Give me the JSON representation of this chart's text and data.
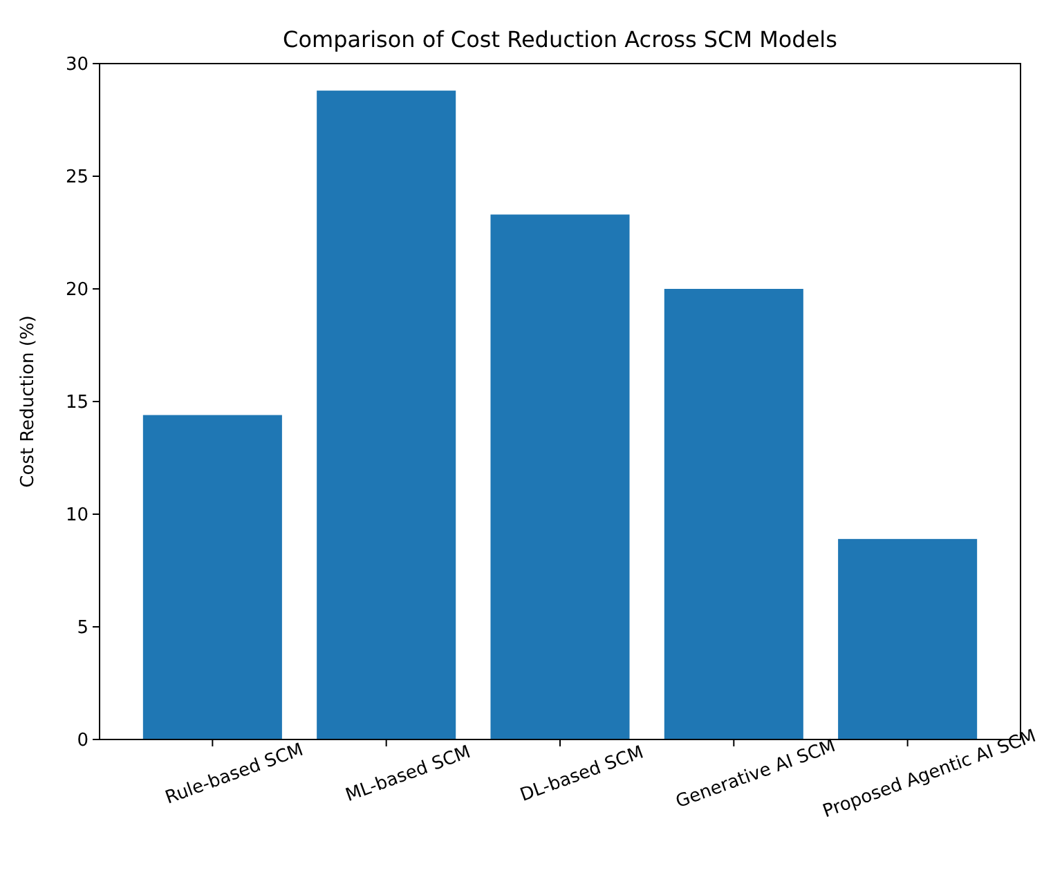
{
  "chart_data": {
    "type": "bar",
    "title": "Comparison of Cost Reduction Across SCM Models",
    "ylabel": "Cost Reduction (%)",
    "categories": [
      "Rule-based SCM",
      "ML-based SCM",
      "DL-based SCM",
      "Generative AI SCM",
      "Proposed Agentic AI SCM"
    ],
    "values": [
      14.4,
      28.8,
      23.3,
      20.0,
      8.9
    ],
    "color": "#1f77b4",
    "ylim": [
      0,
      30
    ],
    "yticks": [
      0,
      5,
      10,
      15,
      20,
      25,
      30
    ],
    "grid": false
  }
}
